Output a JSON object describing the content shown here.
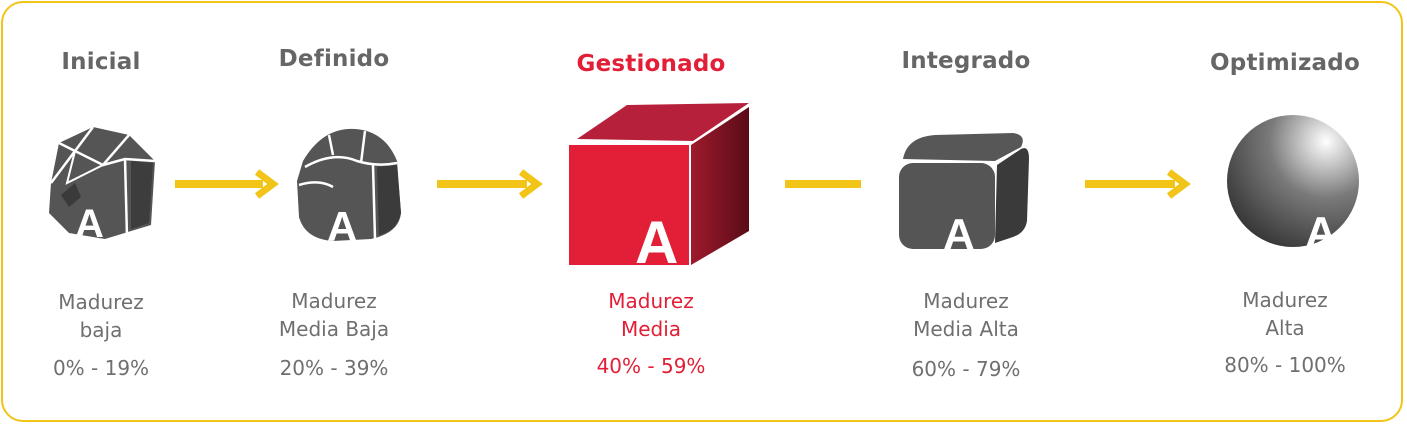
{
  "stages": [
    {
      "title": "Inicial",
      "label_line1": "Madurez",
      "label_line2": "baja",
      "range": "0% - 19%",
      "icon": "rock-icon"
    },
    {
      "title": "Definido",
      "label_line1": "Madurez",
      "label_line2": "Media Baja",
      "range": "20% - 39%",
      "icon": "rounded-rock-icon"
    },
    {
      "title": "Gestionado",
      "label_line1": "Madurez",
      "label_line2": "Media",
      "range": "40% - 59%",
      "icon": "cube-icon"
    },
    {
      "title": "Integrado",
      "label_line1": "Madurez",
      "label_line2": "Media Alta",
      "range": "60% - 79%",
      "icon": "rounded-cube-icon"
    },
    {
      "title": "Optimizado",
      "label_line1": "Madurez",
      "label_line2": "Alta",
      "range": "80% - 100%",
      "icon": "sphere-icon"
    }
  ],
  "icon_letter": "A",
  "colors": {
    "border": "#f2c417",
    "arrow": "#f2c417",
    "text_gray": "#6f6f6f",
    "title_gray": "#666666",
    "active_red": "#e21f36",
    "shape_gray": "#4f4f4f"
  }
}
